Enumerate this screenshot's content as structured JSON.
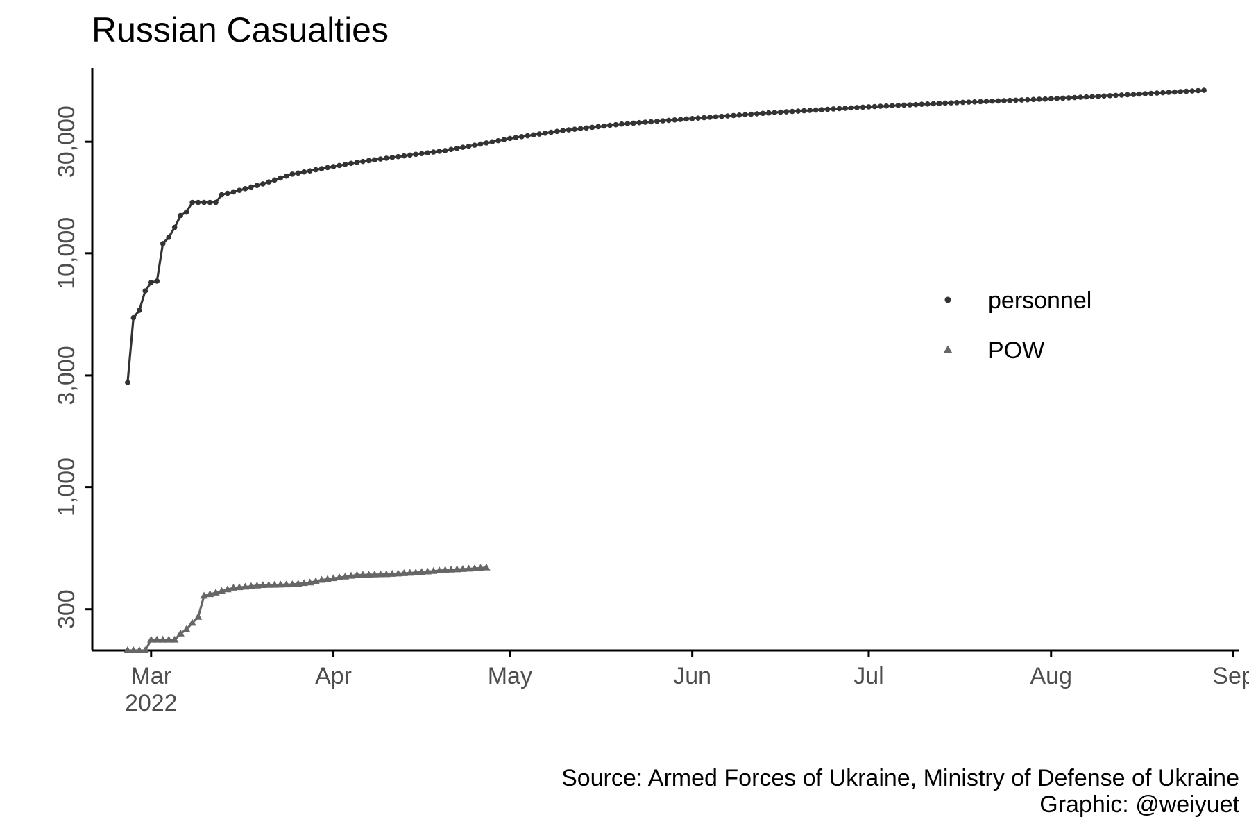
{
  "chart_data": {
    "type": "line",
    "title": "Russian Casualties",
    "xlabel": "",
    "ylabel": "",
    "y_scale": "log",
    "ylim": [
      200,
      62000
    ],
    "xlim": [
      "2022-02-19",
      "2022-09-02"
    ],
    "grid": false,
    "legend_position": "right",
    "x_ticks": [
      {
        "date": "2022-03-01",
        "label": "Mar",
        "sublabel": "2022"
      },
      {
        "date": "2022-04-01",
        "label": "Apr"
      },
      {
        "date": "2022-05-01",
        "label": "May"
      },
      {
        "date": "2022-06-01",
        "label": "Jun"
      },
      {
        "date": "2022-07-01",
        "label": "Jul"
      },
      {
        "date": "2022-08-01",
        "label": "Aug"
      },
      {
        "date": "2022-09-01",
        "label": "Sep"
      }
    ],
    "y_ticks": [
      {
        "value": 300,
        "label": "300"
      },
      {
        "value": 1000,
        "label": "1,000"
      },
      {
        "value": 3000,
        "label": "3,000"
      },
      {
        "value": 10000,
        "label": "10,000"
      },
      {
        "value": 30000,
        "label": "30,000"
      }
    ],
    "series": [
      {
        "name": "personnel",
        "marker": "circle",
        "color": "#333333",
        "x": [
          "2022-02-25",
          "2022-02-26",
          "2022-02-27",
          "2022-02-28",
          "2022-03-01",
          "2022-03-02",
          "2022-03-03",
          "2022-03-04",
          "2022-03-05",
          "2022-03-06",
          "2022-03-07",
          "2022-03-08",
          "2022-03-12",
          "2022-03-13",
          "2022-03-15",
          "2022-03-20",
          "2022-03-25",
          "2022-03-30",
          "2022-04-05",
          "2022-04-10",
          "2022-04-15",
          "2022-04-20",
          "2022-04-25",
          "2022-05-01",
          "2022-05-10",
          "2022-05-20",
          "2022-06-01",
          "2022-06-15",
          "2022-07-01",
          "2022-07-15",
          "2022-08-01",
          "2022-08-15",
          "2022-08-27"
        ],
        "y": [
          2800,
          5300,
          5700,
          6900,
          7500,
          7600,
          11000,
          11700,
          12900,
          14500,
          15000,
          16500,
          16500,
          17800,
          18300,
          19800,
          21800,
          23000,
          24500,
          25500,
          26500,
          27500,
          29000,
          31000,
          33500,
          35700,
          37700,
          40000,
          42300,
          44000,
          45800,
          47800,
          49800
        ]
      },
      {
        "name": "POW",
        "marker": "triangle",
        "color": "#666666",
        "x": [
          "2022-02-25",
          "2022-02-26",
          "2022-02-27",
          "2022-02-28",
          "2022-03-01",
          "2022-03-02",
          "2022-03-03",
          "2022-03-04",
          "2022-03-05",
          "2022-03-06",
          "2022-03-07",
          "2022-03-08",
          "2022-03-09",
          "2022-03-10",
          "2022-03-15",
          "2022-03-20",
          "2022-03-25",
          "2022-03-28",
          "2022-03-30",
          "2022-04-05",
          "2022-04-10",
          "2022-04-15",
          "2022-04-20",
          "2022-04-25",
          "2022-04-27"
        ],
        "y": [
          200,
          200,
          200,
          200,
          222,
          222,
          222,
          222,
          222,
          236,
          246,
          262,
          278,
          342,
          370,
          380,
          383,
          390,
          400,
          420,
          423,
          430,
          441,
          448,
          452
        ]
      }
    ],
    "caption_lines": [
      "Source: Armed Forces of Ukraine, Ministry of Defense of Ukraine",
      "Graphic: @weiyuet"
    ]
  }
}
